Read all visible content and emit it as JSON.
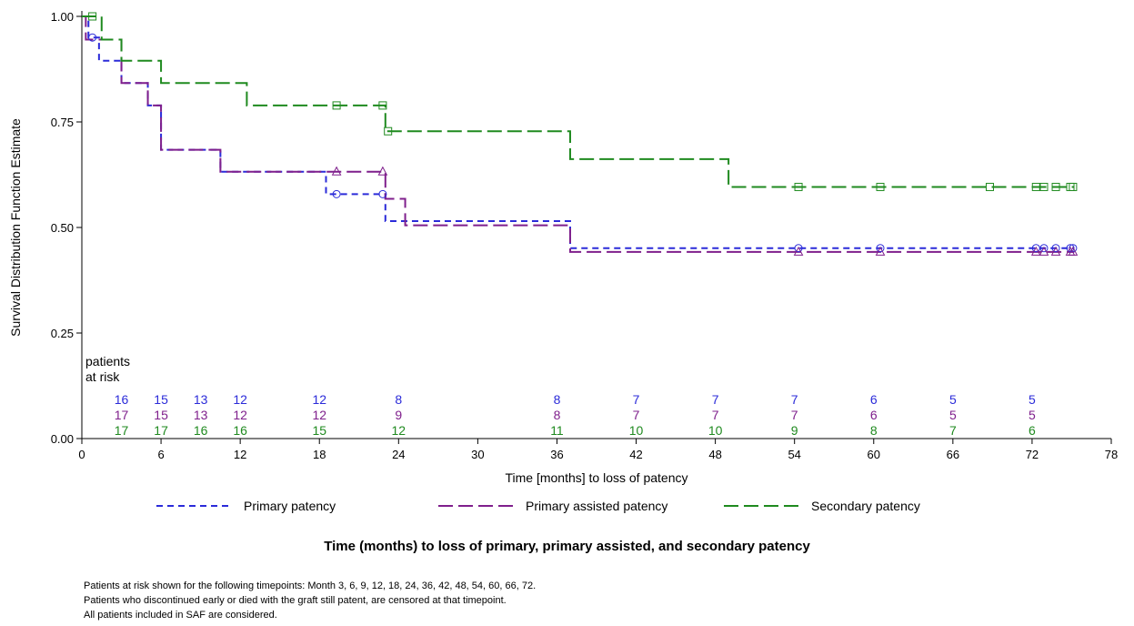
{
  "chart_data": {
    "type": "line",
    "subtype": "kaplan-meier-step",
    "ylabel": "Survival Distribution Function Estimate",
    "xlabel": "Time [months] to loss of patency",
    "xlim": [
      0,
      78
    ],
    "ylim": [
      0,
      1
    ],
    "x_ticks": [
      "0",
      "6",
      "12",
      "18",
      "24",
      "30",
      "36",
      "42",
      "48",
      "54",
      "60",
      "66",
      "72",
      "78"
    ],
    "y_ticks": [
      "0.00",
      "0.25",
      "0.50",
      "0.75",
      "1.00"
    ],
    "grid": false,
    "legend_position": "bottom",
    "series": [
      {
        "name": "Primary patency",
        "color": "#2b2bd9",
        "dash": "short",
        "censor_marker": "circle",
        "steps": [
          [
            0,
            1.0
          ],
          [
            0.5,
            0.95
          ],
          [
            1.3,
            0.895
          ],
          [
            3.0,
            0.842
          ],
          [
            5.0,
            0.789
          ],
          [
            6.0,
            0.684
          ],
          [
            10.5,
            0.632
          ],
          [
            18.5,
            0.579
          ],
          [
            23.0,
            0.515
          ],
          [
            37.0,
            0.451
          ]
        ],
        "end": 75.2,
        "censored": [
          [
            0.8,
            0.95
          ],
          [
            19.3,
            0.579
          ],
          [
            22.8,
            0.579
          ],
          [
            54.3,
            0.451
          ],
          [
            60.5,
            0.451
          ],
          [
            72.3,
            0.451
          ],
          [
            72.9,
            0.451
          ],
          [
            73.8,
            0.451
          ],
          [
            74.9,
            0.451
          ],
          [
            75.1,
            0.451
          ]
        ]
      },
      {
        "name": "Primary assisted patency",
        "color": "#7f1f8c",
        "dash": "long",
        "censor_marker": "triangle",
        "steps": [
          [
            0,
            1.0
          ],
          [
            0.3,
            0.945
          ],
          [
            3.0,
            0.842
          ],
          [
            5.0,
            0.789
          ],
          [
            6.0,
            0.684
          ],
          [
            10.5,
            0.632
          ],
          [
            23.0,
            0.568
          ],
          [
            24.5,
            0.505
          ],
          [
            37.0,
            0.442
          ]
        ],
        "end": 75.2,
        "censored": [
          [
            19.3,
            0.632
          ],
          [
            22.8,
            0.632
          ],
          [
            54.3,
            0.442
          ],
          [
            60.5,
            0.442
          ],
          [
            72.3,
            0.442
          ],
          [
            72.9,
            0.442
          ],
          [
            73.8,
            0.442
          ],
          [
            74.9,
            0.442
          ],
          [
            75.1,
            0.442
          ]
        ]
      },
      {
        "name": "Secondary patency",
        "color": "#1f8a1f",
        "dash": "long",
        "censor_marker": "square",
        "steps": [
          [
            0,
            1.0
          ],
          [
            1.0,
            1.0
          ],
          [
            1.5,
            0.945
          ],
          [
            3.0,
            0.895
          ],
          [
            6.0,
            0.842
          ],
          [
            12.5,
            0.789
          ],
          [
            23.0,
            0.728
          ],
          [
            37.0,
            0.662
          ],
          [
            49.0,
            0.596
          ]
        ],
        "end": 75.2,
        "censored": [
          [
            0.8,
            1.0
          ],
          [
            19.3,
            0.789
          ],
          [
            22.8,
            0.789
          ],
          [
            23.2,
            0.728
          ],
          [
            54.3,
            0.596
          ],
          [
            60.5,
            0.596
          ],
          [
            68.8,
            0.596
          ],
          [
            72.3,
            0.596
          ],
          [
            72.9,
            0.596
          ],
          [
            73.8,
            0.596
          ],
          [
            74.9,
            0.596
          ],
          [
            75.1,
            0.596
          ]
        ]
      }
    ],
    "at_risk": {
      "label_line1": "patients",
      "label_line2": "at risk",
      "timepoints": [
        3,
        6,
        9,
        12,
        18,
        24,
        36,
        42,
        48,
        54,
        60,
        66,
        72
      ],
      "rows": [
        {
          "series": "Primary patency",
          "color": "#2b2bd9",
          "values": [
            "16",
            "15",
            "13",
            "12",
            "12",
            "8",
            "8",
            "7",
            "7",
            "7",
            "6",
            "5",
            "5"
          ]
        },
        {
          "series": "Primary assisted patency",
          "color": "#7f1f8c",
          "values": [
            "17",
            "15",
            "13",
            "12",
            "12",
            "9",
            "8",
            "7",
            "7",
            "7",
            "6",
            "5",
            "5"
          ]
        },
        {
          "series": "Secondary patency",
          "color": "#1f8a1f",
          "values": [
            "17",
            "17",
            "16",
            "16",
            "15",
            "12",
            "11",
            "10",
            "10",
            "9",
            "8",
            "7",
            "6"
          ]
        }
      ]
    }
  },
  "caption": "Time (months) to loss of primary, primary assisted, and secondary patency",
  "notes": [
    "Patients at risk shown for the following timepoints: Month 3, 6, 9, 12, 18, 24, 36, 42, 48, 54, 60, 66, 72.",
    "Patients who discontinued early or died with the graft still patent, are censored at that timepoint.",
    "All patients included in SAF are considered."
  ]
}
